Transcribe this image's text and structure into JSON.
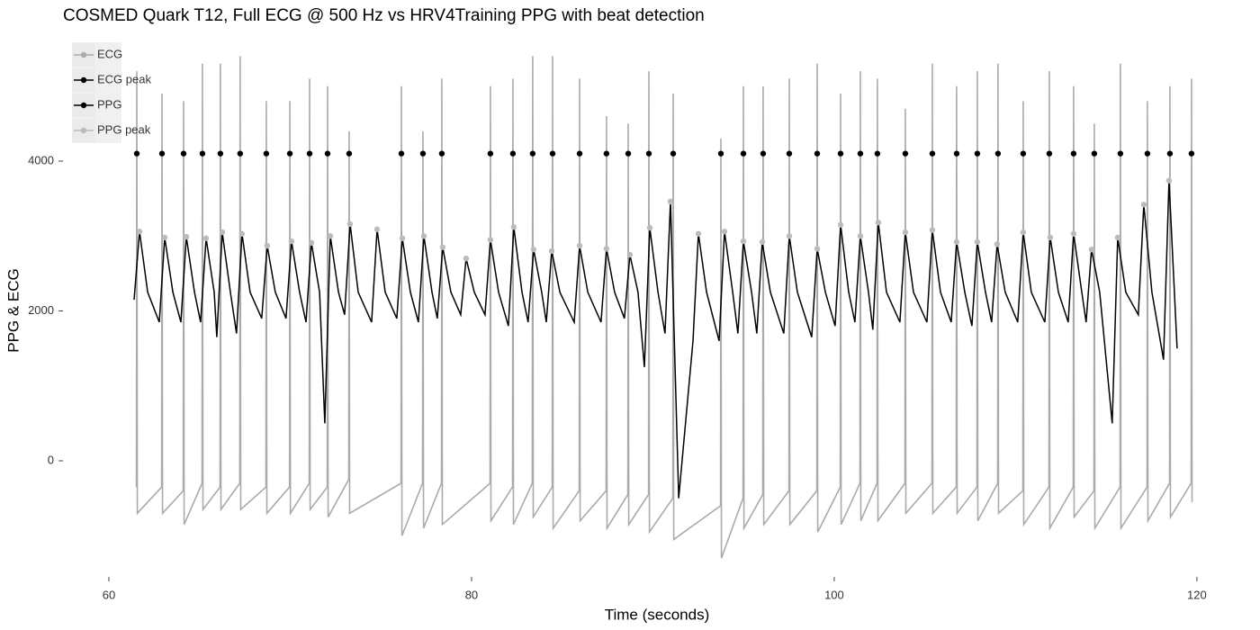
{
  "chart_data": {
    "type": "line",
    "title": "COSMED Quark T12, Full ECG @ 500 Hz vs HRV4Training PPG with beat detection",
    "x_label": "Time (seconds)",
    "y_label": "PPG & ECG",
    "xlim": [
      58.2,
      120.6
    ],
    "ylim": [
      -1500,
      5900
    ],
    "xticks": [
      60,
      80,
      100,
      120
    ],
    "yticks": [
      0,
      2000,
      4000
    ],
    "grid": false,
    "legend_position": "top-left",
    "series": [
      {
        "name": "ECG",
        "color": "#aaaaaa",
        "mark": "line",
        "x": [
          61.52,
          61.54,
          61.57,
          62.91,
          62.93,
          62.96,
          64.1,
          64.12,
          64.15,
          65.14,
          65.16,
          65.19,
          66.13,
          66.15,
          66.18,
          67.22,
          67.24,
          67.27,
          68.66,
          68.68,
          68.71,
          69.96,
          69.98,
          70.01,
          71.05,
          71.07,
          71.1,
          72.04,
          72.06,
          72.09,
          73.23,
          73.25,
          73.28,
          76.11,
          76.13,
          76.16,
          77.3,
          77.32,
          77.35,
          78.34,
          78.36,
          78.39,
          81.02,
          81.04,
          81.07,
          82.26,
          82.28,
          82.31,
          83.35,
          83.37,
          83.4,
          84.45,
          84.47,
          84.5,
          85.94,
          85.96,
          85.99,
          87.42,
          87.44,
          87.47,
          88.62,
          88.64,
          88.67,
          89.76,
          89.78,
          89.81,
          91.1,
          91.12,
          91.15,
          93.73,
          93.75,
          93.78,
          94.97,
          94.99,
          95.02,
          96.06,
          96.08,
          96.11,
          97.5,
          97.52,
          97.55,
          99.04,
          99.06,
          99.09,
          100.33,
          100.35,
          100.38,
          101.42,
          101.44,
          101.47,
          102.36,
          102.38,
          102.41,
          103.9,
          103.92,
          103.95,
          105.39,
          105.41,
          105.44,
          106.73,
          106.75,
          106.78,
          107.87,
          107.89,
          107.92,
          109.01,
          109.03,
          109.06,
          110.4,
          110.42,
          110.45,
          111.84,
          111.86,
          111.89,
          113.18,
          113.2,
          113.23,
          114.32,
          114.34,
          114.37,
          115.76,
          115.78,
          115.81,
          117.25,
          117.27,
          117.3,
          118.49,
          118.51,
          118.54,
          119.68,
          119.7,
          119.73
        ],
        "values": [
          -350,
          5200,
          -700,
          -350,
          4900,
          -700,
          -400,
          4800,
          -850,
          -300,
          5300,
          -650,
          -350,
          5300,
          -650,
          -300,
          5400,
          -650,
          -350,
          4800,
          -700,
          -350,
          4800,
          -700,
          -300,
          5100,
          -650,
          -350,
          5000,
          -750,
          -250,
          4400,
          -700,
          -300,
          5000,
          -1000,
          -300,
          4400,
          -900,
          -300,
          5100,
          -850,
          -300,
          5000,
          -800,
          -350,
          5100,
          -850,
          -300,
          5400,
          -750,
          -350,
          5400,
          -900,
          -400,
          5100,
          -800,
          -400,
          4600,
          -900,
          -450,
          4500,
          -850,
          -450,
          5200,
          -950,
          -500,
          4900,
          -1050,
          -600,
          4300,
          -1300,
          -500,
          5000,
          -900,
          -450,
          5000,
          -850,
          -400,
          5100,
          -850,
          -400,
          5300,
          -950,
          -350,
          4900,
          -850,
          -300,
          5200,
          -800,
          -300,
          5100,
          -800,
          -300,
          4700,
          -700,
          -300,
          5300,
          -700,
          -350,
          5000,
          -700,
          -350,
          5200,
          -800,
          -300,
          5300,
          -700,
          -400,
          4800,
          -850,
          -350,
          5200,
          -900,
          -350,
          5000,
          -750,
          -400,
          4500,
          -900,
          -350,
          5300,
          -900,
          -350,
          4800,
          -800,
          -300,
          5000,
          -750,
          -300,
          5100,
          -550
        ]
      },
      {
        "name": "ECG peak",
        "color": "#000000",
        "mark": "point",
        "x": [
          61.54,
          62.93,
          64.12,
          65.16,
          66.15,
          67.24,
          68.68,
          69.98,
          71.07,
          72.06,
          73.25,
          76.13,
          77.32,
          78.36,
          81.04,
          82.28,
          83.37,
          84.47,
          85.96,
          87.44,
          88.64,
          89.78,
          91.12,
          93.75,
          94.99,
          96.08,
          97.52,
          99.06,
          100.35,
          101.44,
          102.38,
          103.92,
          105.41,
          106.75,
          107.89,
          109.03,
          110.42,
          111.86,
          113.2,
          114.34,
          115.78,
          117.27,
          118.51,
          119.7
        ],
        "values": [
          4100,
          4100,
          4100,
          4100,
          4100,
          4100,
          4100,
          4100,
          4100,
          4100,
          4100,
          4100,
          4100,
          4100,
          4100,
          4100,
          4100,
          4100,
          4100,
          4100,
          4100,
          4100,
          4100,
          4100,
          4100,
          4100,
          4100,
          4100,
          4100,
          4100,
          4100,
          4100,
          4100,
          4100,
          4100,
          4100,
          4100,
          4100,
          4100,
          4100,
          4100,
          4100,
          4100,
          4100
        ]
      },
      {
        "name": "PPG",
        "color": "#000000",
        "mark": "line",
        "x": [
          61.39,
          61.69,
          62.14,
          62.78,
          63.08,
          63.53,
          63.97,
          64.27,
          64.72,
          65.06,
          65.36,
          65.81,
          65.95,
          66.25,
          66.7,
          67.04,
          67.34,
          67.79,
          68.43,
          68.73,
          69.18,
          69.77,
          70.07,
          70.52,
          70.87,
          71.17,
          71.62,
          71.91,
          72.21,
          72.66,
          73.0,
          73.3,
          73.75,
          74.49,
          74.79,
          75.24,
          75.88,
          76.18,
          76.63,
          77.07,
          77.37,
          77.82,
          78.11,
          78.41,
          78.86,
          79.4,
          79.7,
          80.15,
          80.74,
          81.04,
          81.49,
          82.03,
          82.33,
          82.78,
          83.12,
          83.42,
          83.87,
          84.12,
          84.42,
          84.87,
          85.66,
          85.96,
          86.41,
          87.14,
          87.44,
          87.89,
          88.43,
          88.73,
          89.18,
          89.53,
          89.83,
          90.28,
          90.67,
          90.97,
          91.42,
          92.21,
          92.51,
          92.96,
          93.65,
          93.95,
          94.4,
          94.69,
          94.99,
          95.44,
          95.73,
          96.03,
          96.48,
          97.22,
          97.52,
          97.97,
          98.76,
          99.06,
          99.51,
          100.05,
          100.35,
          100.8,
          101.14,
          101.44,
          101.89,
          102.13,
          102.43,
          102.88,
          103.62,
          103.92,
          104.37,
          105.11,
          105.41,
          105.86,
          106.45,
          106.75,
          107.2,
          107.59,
          107.89,
          108.34,
          108.68,
          108.98,
          109.43,
          110.12,
          110.42,
          110.87,
          111.61,
          111.91,
          112.36,
          112.9,
          113.2,
          113.65,
          113.89,
          114.19,
          114.64,
          115.33,
          115.63,
          116.08,
          116.77,
          117.07,
          117.52,
          118.16,
          118.46,
          118.91
        ],
        "values": [
          2150,
          3060,
          2250,
          1850,
          2980,
          2250,
          1850,
          2990,
          2250,
          1850,
          2970,
          2250,
          1650,
          3050,
          2250,
          1700,
          3030,
          2250,
          1900,
          2870,
          2250,
          1900,
          2930,
          2250,
          1850,
          2910,
          2250,
          500,
          3000,
          2250,
          1950,
          3160,
          2250,
          1850,
          3090,
          2250,
          1900,
          2970,
          2250,
          1850,
          3000,
          2250,
          1900,
          2850,
          2250,
          1950,
          2700,
          2250,
          1950,
          2950,
          2250,
          1800,
          3120,
          2250,
          1850,
          2820,
          2250,
          1850,
          2800,
          2250,
          1850,
          2870,
          2250,
          1850,
          2830,
          2250,
          1900,
          2750,
          2250,
          1250,
          3110,
          2250,
          1700,
          3460,
          -500,
          1600,
          3030,
          2250,
          1600,
          3060,
          2250,
          1700,
          2930,
          2250,
          1700,
          2920,
          2250,
          1700,
          3000,
          2250,
          1650,
          2830,
          2250,
          1800,
          3150,
          2250,
          1850,
          3000,
          2250,
          1750,
          3180,
          2250,
          1850,
          3050,
          2250,
          1850,
          3080,
          2250,
          1850,
          2920,
          2250,
          1800,
          2920,
          2250,
          1850,
          2890,
          2250,
          1850,
          3050,
          2250,
          1850,
          2980,
          2250,
          1850,
          3030,
          2250,
          1850,
          2820,
          2250,
          500,
          2980,
          2250,
          1950,
          3420,
          2250,
          1350,
          3740,
          1500
        ]
      },
      {
        "name": "PPG peak",
        "color": "#bbbbbb",
        "mark": "point",
        "x": [
          61.69,
          63.08,
          64.27,
          65.36,
          66.25,
          67.34,
          68.73,
          70.07,
          71.17,
          72.21,
          73.3,
          74.79,
          76.18,
          77.37,
          78.41,
          79.7,
          81.04,
          82.33,
          83.42,
          84.42,
          85.96,
          87.44,
          88.73,
          89.83,
          90.97,
          92.51,
          93.95,
          94.99,
          96.03,
          97.52,
          99.06,
          100.35,
          101.44,
          102.43,
          103.92,
          105.41,
          106.75,
          107.89,
          108.98,
          110.42,
          111.91,
          113.2,
          114.19,
          115.63,
          117.07,
          118.46
        ],
        "values": [
          3060,
          2980,
          2990,
          2970,
          3050,
          3030,
          2870,
          2930,
          2910,
          3000,
          3160,
          3090,
          2970,
          3000,
          2850,
          2700,
          2950,
          3120,
          2820,
          2800,
          2870,
          2830,
          2750,
          3110,
          3460,
          3030,
          3060,
          2930,
          2920,
          3000,
          2830,
          3150,
          3000,
          3180,
          3050,
          3080,
          2920,
          2920,
          2890,
          3050,
          2980,
          3030,
          2820,
          2980,
          3420,
          3740
        ]
      }
    ]
  }
}
